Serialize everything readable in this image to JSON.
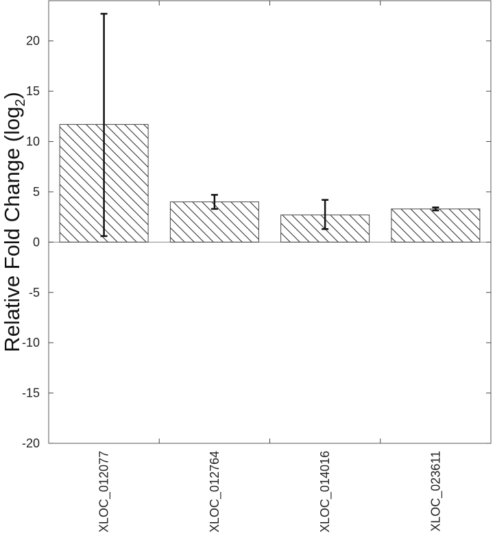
{
  "chart_data": {
    "type": "bar",
    "categories": [
      "XLOC_012077",
      "XLOC_012764",
      "XLOC_014016",
      "XLOC_023611"
    ],
    "values": [
      11.7,
      4.0,
      2.7,
      3.3
    ],
    "error_low": [
      0.6,
      3.3,
      1.3,
      3.15
    ],
    "error_high": [
      22.7,
      4.7,
      4.2,
      3.45
    ],
    "ylabel_main": "Relative Fold Change (log",
    "ylabel_sub": "2",
    "ylabel_close": ")",
    "ylim": [
      -20,
      24
    ],
    "yticks": [
      -20,
      -15,
      -10,
      -5,
      0,
      5,
      10,
      15,
      20
    ],
    "ytick_labels": [
      "-20",
      "-15",
      "-10",
      "-5",
      "0",
      "5",
      "10",
      "15",
      "20"
    ],
    "bar_fill": "hatched",
    "grid": false
  }
}
